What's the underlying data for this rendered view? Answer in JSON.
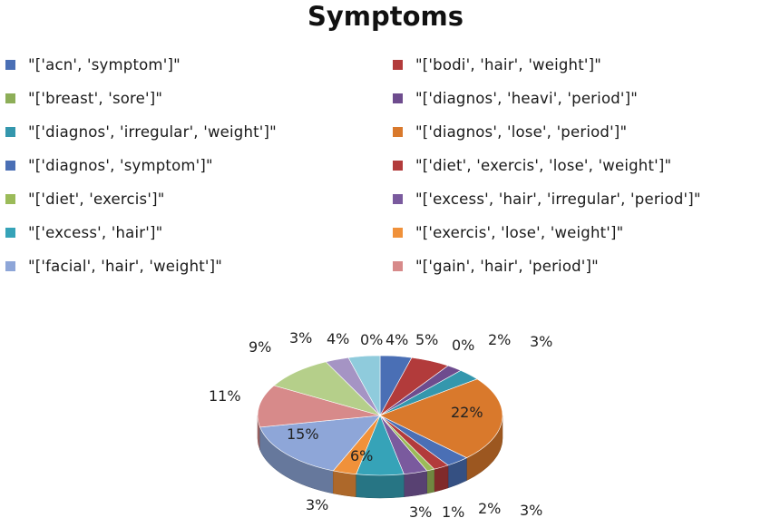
{
  "chart_data": {
    "type": "pie",
    "title": "Symptoms",
    "legend_position": "top",
    "three_d": true,
    "slices": [
      {
        "label": "\"['acn', 'symptom']\"",
        "value": 4,
        "color": "#4A6FB5"
      },
      {
        "label": "\"['bodi', 'hair', 'weight']\"",
        "value": 5,
        "color": "#B23B3B"
      },
      {
        "label": "\"['breast', 'sore']\"",
        "value": 0,
        "color": "#8DAE58"
      },
      {
        "label": "\"['diagnos', 'heavi', 'period']\"",
        "value": 2,
        "color": "#6E4C8E"
      },
      {
        "label": "\"['diagnos', 'irregular', 'weight']\"",
        "value": 3,
        "color": "#3497AD"
      },
      {
        "label": "\"['diagnos', 'lose', 'period']\"",
        "value": 22,
        "color": "#D9792C"
      },
      {
        "label": "\"['diagnos', 'symptom']\"",
        "value": 3,
        "color": "#4A6FB5"
      },
      {
        "label": "\"['diet', 'exercis', 'lose', 'weight']\"",
        "value": 2,
        "color": "#B23B3B"
      },
      {
        "label": "\"['diet', 'exercis']\"",
        "value": 1,
        "color": "#9BBB59"
      },
      {
        "label": "\"['excess', 'hair', 'irregular', 'period']\"",
        "value": 3,
        "color": "#7A5A9E"
      },
      {
        "label": "\"['excess', 'hair']\"",
        "value": 6,
        "color": "#36A3B8"
      },
      {
        "label": "\"['exercis', 'lose', 'weight']\"",
        "value": 3,
        "color": "#F0913A"
      },
      {
        "label": "\"['facial', 'hair', 'weight']\"",
        "value": 15,
        "color": "#8EA6D8"
      },
      {
        "label": "\"['gain', 'hair', 'period']\"",
        "value": 11,
        "color": "#D78A8A"
      },
      {
        "label": "",
        "value": 9,
        "color": "#B5CF8A"
      },
      {
        "label": "",
        "value": 3,
        "color": "#A594C4"
      },
      {
        "label": "",
        "value": 4,
        "color": "#8FCBDC"
      },
      {
        "label": "",
        "value": 0,
        "color": "#F4B183"
      }
    ],
    "data_labels": [
      "4%",
      "5%",
      "0%",
      "2%",
      "3%",
      "22%",
      "3%",
      "2%",
      "1%",
      "3%",
      "6%",
      "3%",
      "15%",
      "11%",
      "9%",
      "3%",
      "4%",
      "0%"
    ]
  }
}
